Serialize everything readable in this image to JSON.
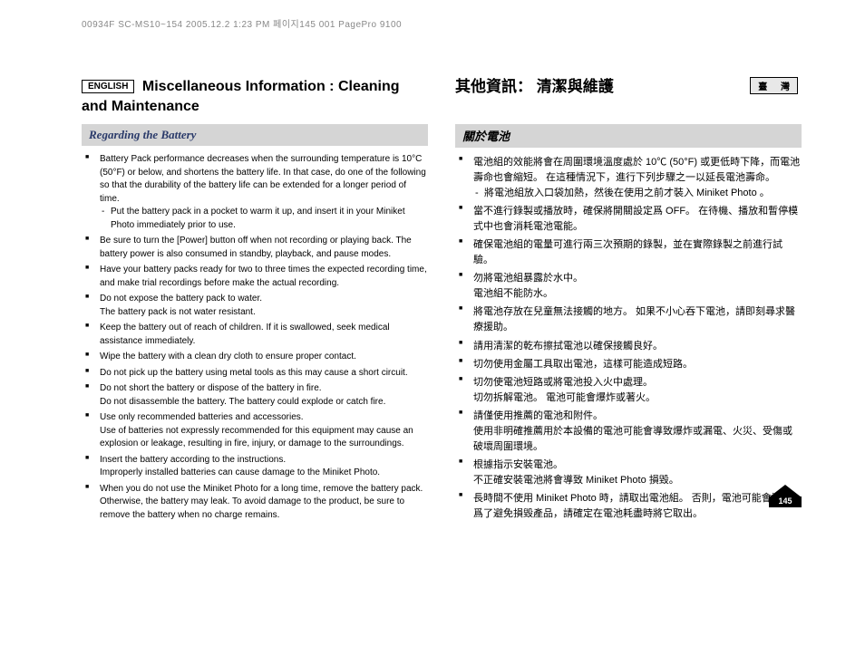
{
  "print_header": "00934F SC-MS10~154  2005.12.2 1:23 PM  페이지145   001 PagePro 9100",
  "page_number": "145",
  "left": {
    "lang_badge": "ENGLISH",
    "title": "Miscellaneous Information : Cleaning and Maintenance",
    "section": "Regarding the Battery",
    "items": [
      {
        "text": "Battery Pack performance decreases when the surrounding temperature is 10°C (50°F) or below, and shortens the battery life. In that case, do one of the following so that the durability of the battery life can be extended for a longer period of time.",
        "sub": "Put the battery pack in a pocket to warm it up, and insert it in your Miniket Photo immediately prior to use."
      },
      {
        "text": "Be sure to turn the [Power] button off when not recording or playing back. The battery power is also consumed in standby, playback, and pause modes."
      },
      {
        "text": "Have your battery packs ready for two to three times the expected recording time, and make trial recordings before make the actual recording."
      },
      {
        "text": "Do not expose the battery pack to water.",
        "cont": "The battery pack is not water resistant."
      },
      {
        "text": "Keep the battery out of reach of children. If it is swallowed, seek medical assistance immediately."
      },
      {
        "text": "Wipe the battery with a clean dry cloth to ensure proper contact."
      },
      {
        "text": "Do not pick up the battery using metal tools as this may cause a short circuit."
      },
      {
        "text": "Do not short the battery or dispose of the battery in fire.",
        "cont": "Do not disassemble the battery. The battery could explode or catch fire."
      },
      {
        "text": "Use only recommended batteries and accessories.",
        "cont": "Use of batteries not expressly recommended for this equipment may cause an explosion or leakage, resulting in fire, injury, or damage to the surroundings."
      },
      {
        "text": "Insert the battery according to the instructions.",
        "cont": "Improperly installed batteries can cause damage to the Miniket Photo."
      },
      {
        "text": "When you do not use the Miniket Photo for a long time, remove the battery pack. Otherwise, the battery may leak. To avoid damage to the product, be sure to remove the battery when no charge remains."
      }
    ]
  },
  "right": {
    "lang_badge": "臺 灣",
    "title": "其他資訊： 清潔與維護",
    "section": "關於電池",
    "items": [
      {
        "text": "電池組的效能將會在周圍環境溫度處於 10℃ (50°F) 或更低時下降，而電池壽命也會縮短。 在這種情況下，進行下列步驟之一以延長電池壽命。",
        "sub": "將電池組放入口袋加熱，然後在使用之前才裝入 Miniket Photo 。"
      },
      {
        "text": "當不進行錄製或播放時，確保將開關設定爲 OFF。 在待機、播放和暫停模式中也會消耗電池電能。"
      },
      {
        "text": "確保電池組的電量可進行兩三次預期的錄製，並在實際錄製之前進行試驗。"
      },
      {
        "text": "勿將電池組暴露於水中。",
        "cont": "電池組不能防水。"
      },
      {
        "text": "將電池存放在兒童無法接觸的地方。 如果不小心吞下電池，請即刻尋求醫療援助。"
      },
      {
        "text": "請用清潔的乾布擦拭電池以確保接觸良好。"
      },
      {
        "text": "切勿使用金屬工具取出電池，這樣可能造成短路。"
      },
      {
        "text": "切勿使電池短路或將電池投入火中處理。",
        "cont": "切勿拆解電池。 電池可能會爆炸或著火。"
      },
      {
        "text": "請僅使用推薦的電池和附件。",
        "cont": "使用非明確推薦用於本設備的電池可能會導致爆炸或漏電、火災、受傷或破壞周圍環境。"
      },
      {
        "text": "根據指示安裝電池。",
        "cont": "不正確安裝電池將會導致 Miniket Photo 損毀。"
      },
      {
        "text": "長時間不使用 Miniket Photo 時，請取出電池組。 否則，電池可能會漏電。 爲了避免損毀產品，請確定在電池耗盡時將它取出。"
      }
    ]
  }
}
